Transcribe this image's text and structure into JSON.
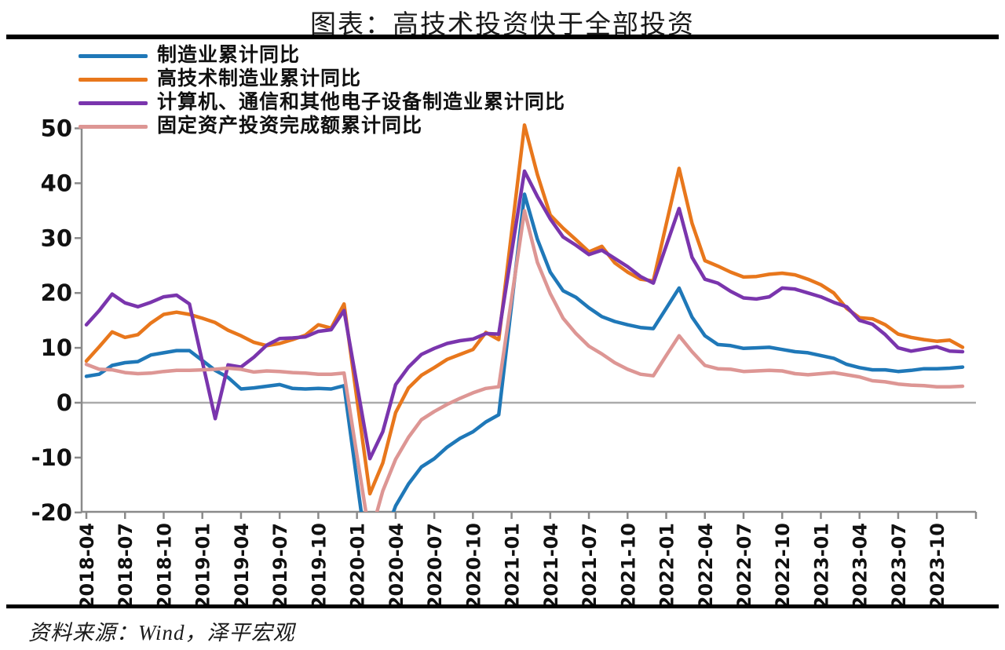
{
  "title": "图表：高技术投资快于全部投资",
  "source_note": "资料来源：Wind，泽平宏观",
  "axis_color": "#8a8a8a",
  "zero_line_color": "#ababab",
  "chart_data": {
    "type": "line",
    "title": "图表：高技术投资快于全部投资",
    "xlabel": "",
    "ylabel": "",
    "ylim": [
      -20,
      50
    ],
    "ytick_step": 10,
    "ytick_labels": [
      "-20",
      "-10",
      "0",
      "10",
      "20",
      "30",
      "40",
      "50"
    ],
    "grid": "zero-line-only",
    "legend_position": "top-left-inside",
    "n_points": 69,
    "x_start": "2018-04",
    "x_end": "2023-12",
    "x_labels": [
      "2018-04",
      "2018-07",
      "2018-10",
      "2019-01",
      "2019-04",
      "2019-07",
      "2019-10",
      "2020-01",
      "2020-04",
      "2020-07",
      "2020-10",
      "2021-01",
      "2021-04",
      "2021-07",
      "2021-10",
      "2022-01",
      "2022-04",
      "2022-07",
      "2022-10",
      "2023-01",
      "2023-04",
      "2023-07",
      "2023-10"
    ],
    "x_label_interval_months": 3,
    "series": [
      {
        "name": "制造业累计同比",
        "color": "#1F78B8",
        "values": [
          4.8,
          5.2,
          6.8,
          7.3,
          7.5,
          8.7,
          9.1,
          9.5,
          9.5,
          7.7,
          5.9,
          4.6,
          2.5,
          2.7,
          3.0,
          3.3,
          2.6,
          2.5,
          2.6,
          2.5,
          3.1,
          -14.2,
          -31.5,
          -25.2,
          -18.8,
          -14.8,
          -11.7,
          -10.2,
          -8.1,
          -6.5,
          -5.3,
          -3.5,
          -2.2,
          17.9,
          38.0,
          29.8,
          23.8,
          20.4,
          19.2,
          17.3,
          15.7,
          14.8,
          14.2,
          13.7,
          13.5,
          17.2,
          20.9,
          15.6,
          12.2,
          10.6,
          10.4,
          9.9,
          10.0,
          10.1,
          9.7,
          9.3,
          9.1,
          8.6,
          8.1,
          7.0,
          6.4,
          6.0,
          6.0,
          5.7,
          5.9,
          6.2,
          6.2,
          6.3,
          6.5
        ]
      },
      {
        "name": "高技术制造业累计同比",
        "color": "#E8771C",
        "values": [
          7.6,
          10.2,
          12.9,
          11.9,
          12.4,
          14.5,
          16.1,
          16.5,
          16.1,
          15.4,
          14.6,
          13.2,
          12.2,
          11.0,
          10.4,
          10.8,
          11.5,
          12.3,
          14.2,
          13.6,
          18.0,
          0.7,
          -16.6,
          -11.0,
          -1.8,
          2.7,
          5.0,
          6.4,
          7.9,
          8.8,
          9.7,
          12.8,
          11.5,
          31.0,
          50.6,
          41.6,
          34.2,
          31.8,
          29.7,
          27.5,
          28.5,
          25.5,
          23.8,
          22.5,
          22.2,
          32.5,
          42.7,
          32.7,
          25.9,
          24.9,
          23.8,
          22.9,
          23.0,
          23.4,
          23.6,
          23.3,
          22.5,
          21.5,
          20.0,
          17.2,
          15.5,
          15.3,
          14.2,
          12.5,
          11.9,
          11.5,
          11.2,
          11.4,
          10.1
        ]
      },
      {
        "name": "计算机、通信和其他电子设备制造业累计同比",
        "color": "#7A35AD",
        "values": [
          14.2,
          16.8,
          19.8,
          18.2,
          17.5,
          18.3,
          19.3,
          19.6,
          18.0,
          7.5,
          -2.9,
          6.9,
          6.5,
          8.3,
          10.5,
          11.7,
          11.8,
          12.0,
          13.0,
          13.3,
          16.8,
          3.3,
          -10.2,
          -5.3,
          3.3,
          6.5,
          8.8,
          9.9,
          10.8,
          11.3,
          11.6,
          12.6,
          12.5,
          27.4,
          42.2,
          37.6,
          33.5,
          30.2,
          28.7,
          27.0,
          27.8,
          26.3,
          24.8,
          23.0,
          21.8,
          28.6,
          35.4,
          26.5,
          22.5,
          21.8,
          20.3,
          19.1,
          18.9,
          19.3,
          20.9,
          20.7,
          20.0,
          19.3,
          18.3,
          17.5,
          15.0,
          14.3,
          12.4,
          10.0,
          9.4,
          9.8,
          10.2,
          9.4,
          9.3
        ]
      },
      {
        "name": "固定资产投资完成额累计同比",
        "color": "#DD9694",
        "values": [
          7.0,
          6.1,
          6.0,
          5.5,
          5.3,
          5.4,
          5.7,
          5.9,
          5.9,
          6.0,
          6.1,
          6.3,
          6.1,
          5.6,
          5.8,
          5.7,
          5.5,
          5.4,
          5.2,
          5.2,
          5.4,
          -9.6,
          -24.5,
          -16.1,
          -10.3,
          -6.3,
          -3.1,
          -1.6,
          -0.3,
          0.8,
          1.8,
          2.6,
          2.9,
          19.0,
          35.0,
          25.6,
          19.9,
          15.4,
          12.6,
          10.3,
          8.9,
          7.3,
          6.1,
          5.2,
          4.9,
          8.6,
          12.2,
          9.3,
          6.8,
          6.2,
          6.1,
          5.7,
          5.8,
          5.9,
          5.8,
          5.3,
          5.1,
          5.3,
          5.5,
          5.1,
          4.7,
          4.0,
          3.8,
          3.4,
          3.2,
          3.1,
          2.9,
          2.9,
          3.0
        ]
      }
    ]
  }
}
